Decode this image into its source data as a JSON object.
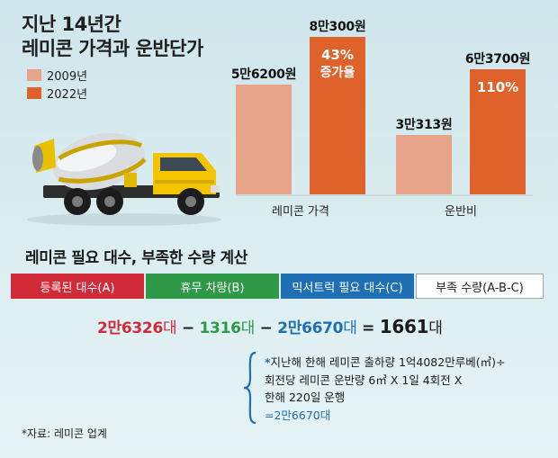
{
  "title": {
    "line1": "지난 14년간",
    "line2": "레미콘 가격과 운반단가"
  },
  "legend": [
    {
      "label": "2009년",
      "color": "#e8a48a"
    },
    {
      "label": "2022년",
      "color": "#e0622b"
    }
  ],
  "chart_data": {
    "type": "bar",
    "title": "지난 14년간 레미콘 가격과 운반단가",
    "categories": [
      "레미콘 가격",
      "운반비"
    ],
    "series": [
      {
        "name": "2009년",
        "values": [
          56200,
          30313
        ],
        "labels": [
          "5만6200원",
          "3만313원"
        ],
        "color": "#e8a48a"
      },
      {
        "name": "2022년",
        "values": [
          80300,
          63700
        ],
        "labels": [
          "8만300원",
          "6만3700원"
        ],
        "color": "#e0622b"
      }
    ],
    "increase": [
      {
        "category": "레미콘 가격",
        "pct_label": "43%",
        "sub_label": "증가율"
      },
      {
        "category": "운반비",
        "pct_label": "110%"
      }
    ],
    "ylim": [
      0,
      90000
    ],
    "grid": false,
    "legend_position": "top-left"
  },
  "calc": {
    "title": "레미콘 필요 대수, 부족한 수량 계산",
    "boxes": [
      {
        "label": "등록된 대수(A)",
        "color": "#d12b3a"
      },
      {
        "label": "휴무 차량(B)",
        "color": "#2e9a48"
      },
      {
        "label": "믹서트럭 필요 대수(C)",
        "color": "#1f6fb4"
      },
      {
        "label": "부족 수량(A-B-C)",
        "color": "#ffffff"
      }
    ],
    "equation": {
      "a": "2만6326",
      "a_unit": "대",
      "op1": "−",
      "b": "1316",
      "b_unit": "대",
      "op2": "−",
      "c": "2만6670",
      "c_unit": "대",
      "op3": "=",
      "result": "1661",
      "result_unit": "대"
    },
    "note": {
      "star": "*",
      "line1": "지난해 한해 레미콘 출하량 1억4082만루베(㎥)÷",
      "line2": "회전당 레미콘 운반량 6㎥ X 1일 4회전 X",
      "line3": "한해 220일 운행",
      "line4": "=2만6670대"
    }
  },
  "source": "*자료: 레미콘 업계"
}
